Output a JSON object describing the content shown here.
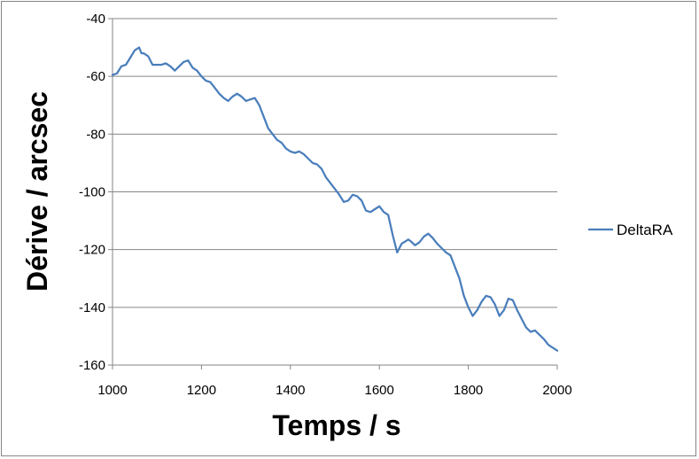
{
  "chart_data": {
    "type": "line",
    "title": "",
    "xlabel": "Temps / s",
    "ylabel": "Dérive / arcsec",
    "xlim": [
      1000,
      2000
    ],
    "ylim": [
      -160,
      -40
    ],
    "xticks": [
      1000,
      1200,
      1400,
      1600,
      1800,
      2000
    ],
    "yticks": [
      -160,
      -140,
      -120,
      -100,
      -80,
      -60,
      -40
    ],
    "grid": "horizontal major",
    "legend_position": "right",
    "series": [
      {
        "name": "DeltaRA",
        "color": "#4a7ebb",
        "x": [
          1000,
          1010,
          1020,
          1030,
          1040,
          1050,
          1060,
          1065,
          1070,
          1080,
          1090,
          1100,
          1110,
          1120,
          1130,
          1140,
          1150,
          1160,
          1170,
          1180,
          1190,
          1200,
          1210,
          1220,
          1230,
          1240,
          1250,
          1260,
          1270,
          1280,
          1290,
          1300,
          1310,
          1320,
          1330,
          1340,
          1350,
          1360,
          1370,
          1380,
          1390,
          1400,
          1410,
          1420,
          1430,
          1440,
          1450,
          1460,
          1470,
          1480,
          1490,
          1500,
          1510,
          1520,
          1530,
          1540,
          1550,
          1560,
          1570,
          1580,
          1590,
          1600,
          1610,
          1620,
          1630,
          1640,
          1650,
          1660,
          1665,
          1670,
          1680,
          1690,
          1700,
          1710,
          1720,
          1730,
          1740,
          1750,
          1760,
          1770,
          1780,
          1790,
          1800,
          1810,
          1820,
          1830,
          1840,
          1850,
          1860,
          1870,
          1880,
          1890,
          1900,
          1910,
          1920,
          1930,
          1940,
          1950,
          1960,
          1970,
          1980,
          1990,
          2000
        ],
        "y": [
          -59.5,
          -59,
          -56.5,
          -56,
          -53.5,
          -51,
          -50,
          -52,
          -52,
          -53,
          -56,
          -56,
          -56,
          -55.5,
          -56.5,
          -58,
          -56.5,
          -55,
          -54.5,
          -57,
          -58,
          -60,
          -61.5,
          -62,
          -64,
          -66,
          -67.5,
          -68.5,
          -67,
          -66,
          -67,
          -68.5,
          -68,
          -67.5,
          -70,
          -74,
          -78,
          -80,
          -82,
          -83,
          -85,
          -86,
          -86.5,
          -86,
          -87,
          -88.5,
          -90,
          -90.5,
          -92,
          -95,
          -97,
          -99,
          -101,
          -103.5,
          -103,
          -101,
          -101.5,
          -103,
          -106.5,
          -107,
          -106,
          -105,
          -107,
          -108,
          -115,
          -121,
          -118,
          -117,
          -116.5,
          -117,
          -118.5,
          -117.5,
          -115.5,
          -114.5,
          -116,
          -118,
          -119.5,
          -121,
          -122,
          -126,
          -130,
          -136,
          -140,
          -143,
          -141,
          -138,
          -136,
          -136.5,
          -139,
          -143,
          -141,
          -137,
          -137.5,
          -141,
          -144,
          -147,
          -148.5,
          -148,
          -149.5,
          -151,
          -153,
          -154,
          -155
        ]
      }
    ]
  }
}
